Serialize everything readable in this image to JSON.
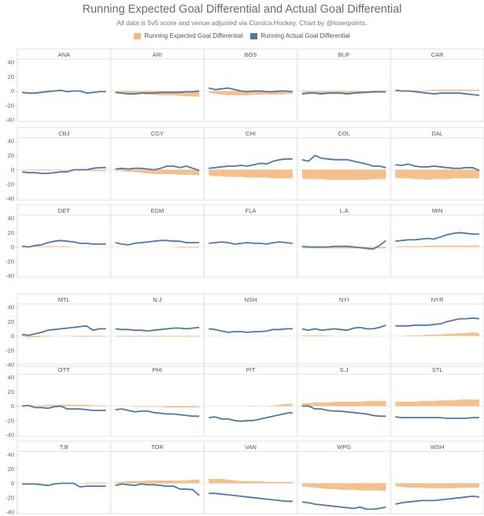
{
  "title": "Running Expected Goal Differential and Actual Goal Differential",
  "subtitle": "All data is 5v5 score and venue adjusted via Corsica.Hockey. Chart by @loserpoints.",
  "legend": [
    {
      "label": "Running Expected Goal Differential",
      "color": "#f5b97f"
    },
    {
      "label": "Running Actual Goal Differential",
      "color": "#4e79a7"
    }
  ],
  "chart_data": {
    "type": "area",
    "facet": "small-multiples",
    "ylim": [
      -40,
      40
    ],
    "yticks": [
      "40",
      "20",
      "0",
      "-20",
      "-40"
    ],
    "series_names": [
      "Running Expected Goal Differential",
      "Running Actual Goal Differential"
    ],
    "teams": [
      {
        "name": "ANA",
        "expected": [
          0,
          0,
          0,
          1,
          1,
          1,
          0,
          0,
          -1,
          -1,
          0,
          0,
          0,
          0
        ],
        "actual": [
          -2,
          -3,
          -3,
          -2,
          -1,
          0,
          1,
          -1,
          0,
          0,
          -3,
          -2,
          -1,
          -1
        ]
      },
      {
        "name": "ARI",
        "expected": [
          -1,
          -2,
          -3,
          -4,
          -4,
          -5,
          -5,
          -6,
          -6,
          -6,
          -7,
          -7,
          -8,
          -8
        ],
        "actual": [
          -2,
          -3,
          -4,
          -4,
          -3,
          -3,
          -3,
          -2,
          -2,
          -2,
          -2,
          -1,
          -1,
          0
        ]
      },
      {
        "name": "BOS",
        "expected": [
          -2,
          -4,
          -5,
          -6,
          -6,
          -6,
          -6,
          -5,
          -5,
          -5,
          -5,
          -5,
          -4,
          -4
        ],
        "actual": [
          4,
          2,
          3,
          4,
          2,
          0,
          -1,
          0,
          0,
          -1,
          -1,
          0,
          0,
          -1
        ]
      },
      {
        "name": "BUF",
        "expected": [
          -2,
          -3,
          -4,
          -4,
          -4,
          -3,
          -3,
          -3,
          -4,
          -4,
          -3,
          -3,
          -3,
          -2
        ],
        "actual": [
          -4,
          -3,
          -3,
          -4,
          -3,
          -3,
          -3,
          -4,
          -3,
          -2,
          -2,
          -1,
          -1,
          -1
        ]
      },
      {
        "name": "CAR",
        "expected": [
          0,
          0,
          1,
          1,
          1,
          1,
          2,
          2,
          2,
          2,
          2,
          2,
          2,
          2
        ],
        "actual": [
          1,
          0,
          0,
          -1,
          -2,
          -3,
          -4,
          -3,
          -3,
          -3,
          -3,
          -4,
          -5,
          -6
        ]
      },
      {
        "name": "CBJ",
        "expected": [
          -1,
          -1,
          -1,
          -1,
          -1,
          -1,
          -1,
          -1,
          -1,
          -1,
          -1,
          -2,
          -2,
          -2
        ],
        "actual": [
          -3,
          -4,
          -4,
          -5,
          -5,
          -4,
          -3,
          -3,
          0,
          0,
          0,
          2,
          3,
          3
        ]
      },
      {
        "name": "CGY",
        "expected": [
          -1,
          -2,
          -3,
          -3,
          -4,
          -5,
          -6,
          -6,
          -6,
          -6,
          -7,
          -7,
          -7,
          -8
        ],
        "actual": [
          1,
          2,
          1,
          2,
          2,
          1,
          0,
          2,
          5,
          5,
          3,
          5,
          2,
          -1
        ]
      },
      {
        "name": "CHI",
        "expected": [
          -8,
          -9,
          -9,
          -10,
          -10,
          -10,
          -11,
          -11,
          -11,
          -11,
          -12,
          -12,
          -12,
          -12
        ],
        "actual": [
          2,
          3,
          4,
          5,
          5,
          6,
          5,
          7,
          9,
          8,
          12,
          14,
          15,
          15
        ]
      },
      {
        "name": "COL",
        "expected": [
          -12,
          -13,
          -13,
          -13,
          -14,
          -14,
          -14,
          -14,
          -14,
          -14,
          -14,
          -13,
          -13,
          -13
        ],
        "actual": [
          14,
          12,
          20,
          16,
          15,
          14,
          14,
          14,
          12,
          10,
          8,
          5,
          5,
          3
        ]
      },
      {
        "name": "DAL",
        "expected": [
          -11,
          -12,
          -12,
          -13,
          -13,
          -14,
          -13,
          -13,
          -13,
          -12,
          -12,
          -12,
          -12,
          -12
        ],
        "actual": [
          7,
          6,
          8,
          5,
          4,
          4,
          5,
          4,
          3,
          2,
          2,
          3,
          3,
          -1
        ]
      },
      {
        "name": "DET",
        "expected": [
          1,
          1,
          1,
          1,
          1,
          1,
          1,
          1,
          0,
          0,
          0,
          0,
          0,
          0
        ],
        "actual": [
          1,
          0,
          2,
          3,
          6,
          8,
          9,
          8,
          7,
          5,
          5,
          4,
          4,
          4
        ]
      },
      {
        "name": "EDM",
        "expected": [
          0,
          0,
          0,
          0,
          0,
          0,
          0,
          0,
          0,
          0,
          -1,
          -1,
          -1,
          -1
        ],
        "actual": [
          6,
          4,
          3,
          5,
          6,
          7,
          8,
          9,
          9,
          8,
          8,
          6,
          6,
          6
        ]
      },
      {
        "name": "FLA",
        "expected": [
          0,
          0,
          0,
          0,
          0,
          0,
          0,
          0,
          0,
          0,
          0,
          0,
          0,
          0
        ],
        "actual": [
          5,
          6,
          7,
          6,
          4,
          5,
          6,
          5,
          5,
          4,
          6,
          7,
          6,
          5
        ]
      },
      {
        "name": "L.A",
        "expected": [
          -2,
          -2,
          -2,
          -2,
          -2,
          -2,
          -2,
          -2,
          -2,
          -2,
          -2,
          -2,
          -2,
          -2
        ],
        "actual": [
          1,
          0,
          0,
          0,
          0,
          1,
          1,
          1,
          0,
          -1,
          -2,
          -3,
          2,
          9
        ]
      },
      {
        "name": "MIN",
        "expected": [
          1,
          1,
          1,
          1,
          1,
          2,
          2,
          2,
          2,
          2,
          2,
          2,
          2,
          2
        ],
        "actual": [
          8,
          9,
          10,
          10,
          11,
          12,
          11,
          14,
          17,
          19,
          20,
          19,
          18,
          18
        ]
      },
      {
        "name": "MTL",
        "expected": [
          -1,
          -2,
          -2,
          -1,
          -1,
          0,
          0,
          0,
          -1,
          -1,
          -1,
          -1,
          -1,
          -1
        ],
        "actual": [
          2,
          1,
          3,
          5,
          8,
          9,
          10,
          11,
          12,
          13,
          14,
          8,
          10,
          10
        ]
      },
      {
        "name": "N.J",
        "expected": [
          -1,
          -1,
          -1,
          -1,
          -1,
          -1,
          -1,
          -1,
          -1,
          -1,
          -1,
          -1,
          -1,
          -1
        ],
        "actual": [
          10,
          9,
          9,
          8,
          8,
          7,
          8,
          9,
          10,
          11,
          11,
          10,
          11,
          12
        ]
      },
      {
        "name": "NSH",
        "expected": [
          0,
          0,
          0,
          0,
          0,
          0,
          0,
          0,
          0,
          0,
          0,
          0,
          0,
          0
        ],
        "actual": [
          10,
          9,
          7,
          5,
          6,
          6,
          5,
          6,
          6,
          7,
          9,
          9,
          10,
          10
        ]
      },
      {
        "name": "NYI",
        "expected": [
          1,
          1,
          1,
          1,
          1,
          0,
          0,
          0,
          0,
          0,
          0,
          0,
          0,
          0
        ],
        "actual": [
          10,
          8,
          10,
          8,
          9,
          10,
          9,
          8,
          11,
          12,
          10,
          10,
          12,
          15
        ]
      },
      {
        "name": "NYR",
        "expected": [
          0,
          0,
          1,
          1,
          1,
          2,
          2,
          2,
          3,
          3,
          4,
          4,
          5,
          4
        ],
        "actual": [
          14,
          14,
          14,
          15,
          15,
          15,
          16,
          17,
          20,
          22,
          24,
          24,
          25,
          24
        ]
      },
      {
        "name": "OTT",
        "expected": [
          1,
          1,
          1,
          1,
          2,
          2,
          2,
          2,
          2,
          2,
          2,
          1,
          1,
          1
        ],
        "actual": [
          0,
          1,
          -2,
          -2,
          -3,
          -1,
          0,
          -4,
          -4,
          -4,
          -5,
          -6,
          -6,
          -6
        ]
      },
      {
        "name": "PHI",
        "expected": [
          0,
          0,
          0,
          -1,
          -1,
          -1,
          -1,
          -1,
          -2,
          -2,
          -2,
          -2,
          -2,
          -2
        ],
        "actual": [
          -5,
          -4,
          -6,
          -8,
          -7,
          -7,
          -9,
          -10,
          -11,
          -11,
          -12,
          -13,
          -14,
          -14
        ]
      },
      {
        "name": "PIT",
        "expected": [
          0,
          0,
          0,
          0,
          0,
          0,
          0,
          -1,
          0,
          0,
          1,
          2,
          3,
          3
        ],
        "actual": [
          -16,
          -15,
          -18,
          -18,
          -20,
          -21,
          -20,
          -20,
          -18,
          -16,
          -14,
          -12,
          -10,
          -9
        ]
      },
      {
        "name": "S.J",
        "expected": [
          4,
          4,
          5,
          5,
          5,
          6,
          6,
          6,
          6,
          6,
          7,
          7,
          7,
          7
        ],
        "actual": [
          0,
          0,
          -4,
          -4,
          -6,
          -7,
          -7,
          -8,
          -9,
          -10,
          -11,
          -13,
          -14,
          -14
        ]
      },
      {
        "name": "STL",
        "expected": [
          6,
          6,
          6,
          6,
          7,
          7,
          7,
          8,
          8,
          8,
          9,
          9,
          9,
          9
        ],
        "actual": [
          -15,
          -16,
          -16,
          -16,
          -16,
          -16,
          -16,
          -16,
          -17,
          -17,
          -17,
          -17,
          -16,
          -16
        ]
      },
      {
        "name": "T.B",
        "expected": [
          -1,
          -1,
          -1,
          0,
          0,
          0,
          0,
          0,
          0,
          0,
          1,
          1,
          1,
          1
        ],
        "actual": [
          -1,
          -1,
          -1,
          -2,
          -3,
          -1,
          0,
          0,
          0,
          -5,
          -4,
          -4,
          -4,
          -4
        ]
      },
      {
        "name": "TOR",
        "expected": [
          2,
          2,
          3,
          3,
          3,
          4,
          4,
          4,
          4,
          4,
          4,
          4,
          5,
          5
        ],
        "actual": [
          -3,
          -1,
          -2,
          -3,
          -1,
          -2,
          -2,
          -3,
          -4,
          -4,
          -8,
          -8,
          -9,
          -17
        ]
      },
      {
        "name": "VAN",
        "expected": [
          6,
          6,
          6,
          5,
          4,
          3,
          3,
          3,
          3,
          2,
          2,
          2,
          2,
          2
        ],
        "actual": [
          -14,
          -14,
          -15,
          -16,
          -17,
          -18,
          -19,
          -20,
          -21,
          -22,
          -23,
          -24,
          -25,
          -25
        ]
      },
      {
        "name": "WPG",
        "expected": [
          -4,
          -5,
          -6,
          -7,
          -8,
          -8,
          -9,
          -9,
          -9,
          -10,
          -10,
          -10,
          -10,
          -11
        ],
        "actual": [
          -26,
          -27,
          -29,
          -30,
          -31,
          -32,
          -33,
          -34,
          -35,
          -33,
          -36,
          -36,
          -35,
          -33
        ]
      },
      {
        "name": "WSH",
        "expected": [
          -4,
          -5,
          -6,
          -6,
          -6,
          -7,
          -7,
          -7,
          -7,
          -7,
          -6,
          -6,
          -6,
          -6
        ],
        "actual": [
          -29,
          -27,
          -26,
          -25,
          -24,
          -24,
          -24,
          -23,
          -22,
          -21,
          -20,
          -19,
          -18,
          -19
        ]
      }
    ]
  }
}
